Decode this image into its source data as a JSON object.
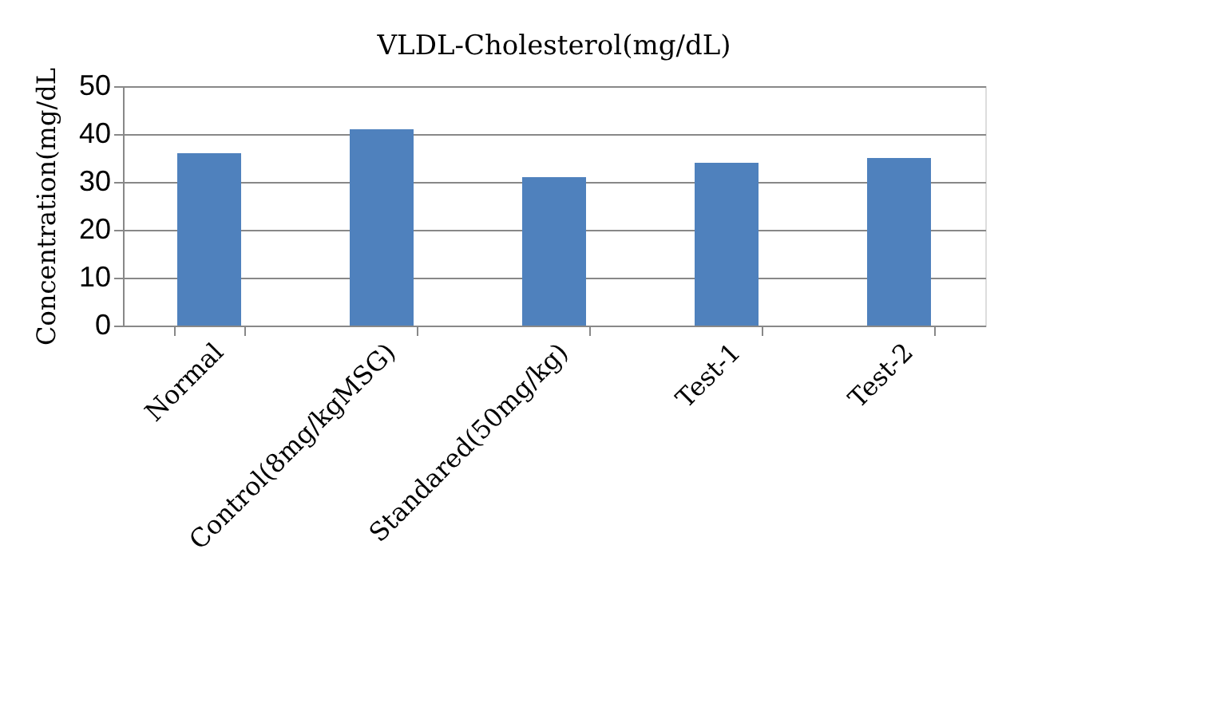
{
  "chart_data": {
    "type": "bar",
    "title": "VLDL-Cholesterol(mg/dL)",
    "ylabel": "Concentration(mg/dL",
    "categories": [
      "Normal",
      "Control(8mg/kgMSG)",
      "Standared(50mg/kg)",
      "Test-1",
      "Test-2"
    ],
    "values": [
      36,
      41,
      31,
      34,
      35
    ],
    "color": "#4f81bd",
    "ylim": [
      0,
      50
    ],
    "yticks": [
      0,
      10,
      20,
      30,
      40,
      50
    ],
    "grid": "y"
  }
}
